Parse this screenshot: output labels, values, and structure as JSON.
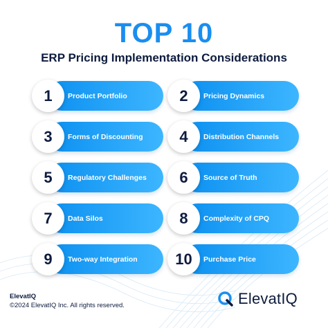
{
  "header": {
    "title": "TOP 10",
    "subtitle": "ERP Pricing Implementation Considerations"
  },
  "items": [
    {
      "number": "1",
      "label": "Product Portfolio"
    },
    {
      "number": "2",
      "label": "Pricing Dynamics"
    },
    {
      "number": "3",
      "label": "Forms of Discounting"
    },
    {
      "number": "4",
      "label": "Distribution Channels"
    },
    {
      "number": "5",
      "label": "Regulatory Challenges"
    },
    {
      "number": "6",
      "label": "Source of Truth"
    },
    {
      "number": "7",
      "label": "Data Silos"
    },
    {
      "number": "8",
      "label": "Complexity of CPQ"
    },
    {
      "number": "9",
      "label": "Two-way Integration"
    },
    {
      "number": "10",
      "label": "Purchase Price"
    }
  ],
  "footer": {
    "brand": "ElevatIQ",
    "copyright": "©2024 ElevatIQ Inc. All rights reserved.",
    "logo_text": "ElevatIQ"
  },
  "colors": {
    "title_blue": "#1a8ef0",
    "pill_start": "#0b8ff0",
    "pill_end": "#3db6ff",
    "navy": "#0d1b3e"
  },
  "icons": {
    "logo": "elevatiq-q-logo-icon"
  }
}
